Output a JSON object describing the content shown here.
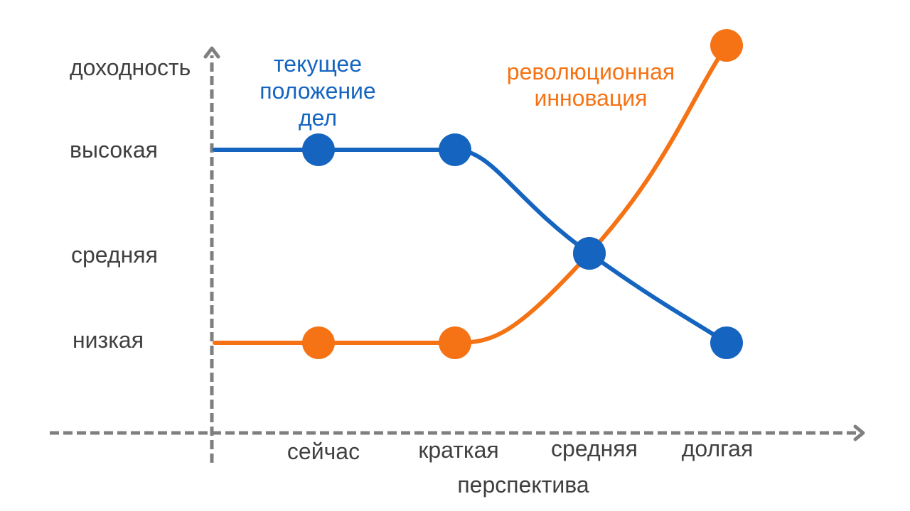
{
  "chart_data": {
    "type": "line",
    "ylabel": "доходность",
    "xlabel": "перспектива",
    "categories": [
      "сейчас",
      "краткая",
      "средняя",
      "долгая"
    ],
    "y_levels": [
      "низкая",
      "средняя",
      "высокая"
    ],
    "series": [
      {
        "name": "текущее положение дел",
        "name_lines": [
          "текущее",
          "положение",
          "дел"
        ],
        "color": "#1565c0",
        "values": [
          "высокая",
          "высокая",
          "средняя",
          "низкая"
        ]
      },
      {
        "name": "революционная инновация",
        "name_lines": [
          "революционная",
          "инновация"
        ],
        "color": "#f57314",
        "values": [
          "низкая",
          "низкая",
          "средняя",
          "очень высокая"
        ]
      }
    ],
    "legend": "inline, near lines",
    "grid": false
  }
}
